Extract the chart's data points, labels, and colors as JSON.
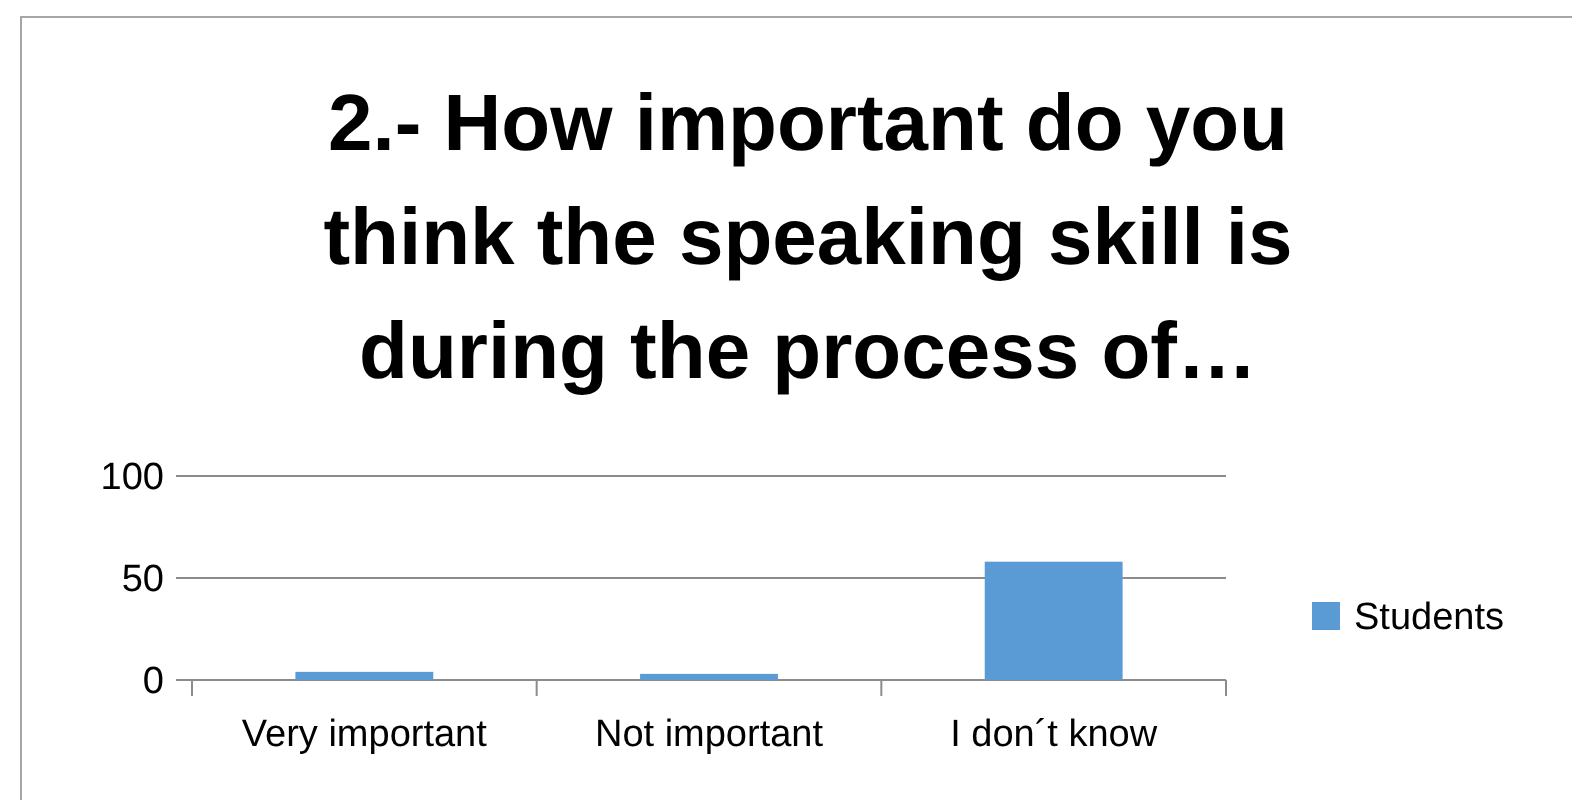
{
  "chart_data": {
    "type": "bar",
    "title": "2.- How important do you think the speaking skill is during the process of…",
    "categories": [
      "Very important",
      "Not important",
      "I don´t know"
    ],
    "series": [
      {
        "name": "Students",
        "color": "#5b9bd5",
        "values": [
          4,
          3,
          58
        ]
      }
    ],
    "ylim": [
      0,
      100
    ],
    "yticks": [
      0,
      50,
      100
    ],
    "grid": "y",
    "legend": "right"
  }
}
